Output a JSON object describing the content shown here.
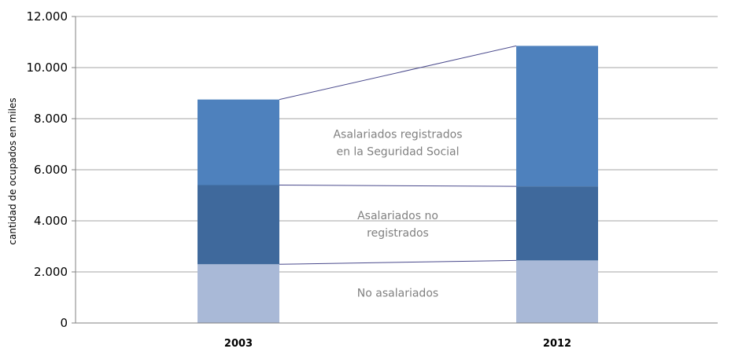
{
  "chart_data": {
    "type": "bar",
    "stacked": true,
    "categories": [
      "2003",
      "2012"
    ],
    "series": [
      {
        "name": "No asalariados",
        "values": [
          2300,
          2450
        ],
        "color": "#a9b9d7"
      },
      {
        "name": "Asalariados no registrados",
        "values": [
          3100,
          2900
        ],
        "color": "#3f699c"
      },
      {
        "name": "Asalariados registrados en la Seguridad Social",
        "values": [
          3350,
          5500
        ],
        "color": "#4e81bd"
      }
    ],
    "ylabel": "cantidad de ocupados en miles",
    "xlabel": "",
    "ylim": [
      0,
      12000
    ],
    "yticks": [
      0,
      2000,
      4000,
      6000,
      8000,
      10000,
      12000
    ],
    "ytick_labels": [
      "0",
      "2.000",
      "4.000",
      "6.000",
      "8.000",
      "10.000",
      "12.000"
    ],
    "grid": true,
    "connector_color": "#4a4a8c",
    "annotations": [
      {
        "series_index": 2,
        "lines": [
          "Asalariados registrados",
          "en la Seguridad Social"
        ]
      },
      {
        "series_index": 1,
        "lines": [
          "Asalariados no",
          "registrados"
        ]
      },
      {
        "series_index": 0,
        "lines": [
          "No asalariados"
        ]
      }
    ]
  }
}
